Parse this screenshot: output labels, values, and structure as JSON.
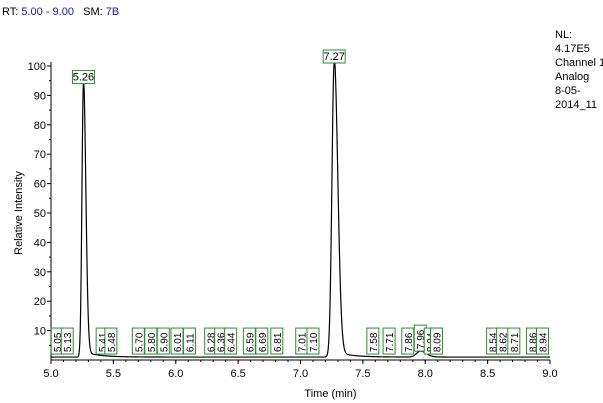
{
  "header": {
    "rt_label": "RT:",
    "rt_value": "5.00 - 9.00",
    "sm_label": "SM:",
    "sm_value": "7B"
  },
  "info": {
    "lines": [
      "NL:",
      "4.17E5",
      "Channel 1",
      "Analog",
      "8-05-",
      "2014_11"
    ]
  },
  "colors": {
    "trace": "#000000",
    "label_border": "#2e8b2e",
    "header_value": "#1a1aa6"
  },
  "chart_data": {
    "type": "line",
    "title": "",
    "xlabel": "Time (min)",
    "ylabel": "Relative Intensity",
    "xlim": [
      5.0,
      9.0
    ],
    "ylim": [
      0,
      100
    ],
    "xticks": [
      5.0,
      5.5,
      6.0,
      6.5,
      7.0,
      7.5,
      8.0,
      8.5,
      9.0
    ],
    "xtick_labels": [
      "5.0",
      "5.5",
      "6.0",
      "6.5",
      "7.0",
      "7.5",
      "8.0",
      "8.5",
      "9.0"
    ],
    "yticks": [
      10,
      20,
      30,
      40,
      50,
      60,
      70,
      80,
      90,
      100
    ],
    "ytick_labels": [
      "10",
      "20",
      "30",
      "40",
      "50",
      "60",
      "70",
      "80",
      "90",
      "100"
    ],
    "grid": false,
    "legend": "none",
    "baseline": 1,
    "peaks": [
      {
        "rt": 5.26,
        "height": 93,
        "width": 0.012
      },
      {
        "rt": 7.27,
        "height": 100,
        "width": 0.018
      },
      {
        "rt": 7.96,
        "height": 2,
        "width": 0.03
      }
    ],
    "annotations": [
      {
        "label": "5.05",
        "x": 5.05,
        "y": 1,
        "orient": "vertical"
      },
      {
        "label": "5.13",
        "x": 5.13,
        "y": 1,
        "orient": "vertical"
      },
      {
        "label": "5.26",
        "x": 5.26,
        "y": 93,
        "orient": "horizontal"
      },
      {
        "label": "5.41",
        "x": 5.41,
        "y": 1,
        "orient": "vertical"
      },
      {
        "label": "5.48",
        "x": 5.48,
        "y": 1,
        "orient": "vertical"
      },
      {
        "label": "5.70",
        "x": 5.7,
        "y": 1,
        "orient": "vertical"
      },
      {
        "label": "5.80",
        "x": 5.8,
        "y": 1,
        "orient": "vertical"
      },
      {
        "label": "5.90",
        "x": 5.9,
        "y": 1,
        "orient": "vertical"
      },
      {
        "label": "6.01",
        "x": 6.01,
        "y": 1,
        "orient": "vertical"
      },
      {
        "label": "6.11",
        "x": 6.11,
        "y": 1,
        "orient": "vertical"
      },
      {
        "label": "6.28",
        "x": 6.28,
        "y": 1,
        "orient": "vertical"
      },
      {
        "label": "6.36",
        "x": 6.36,
        "y": 1,
        "orient": "vertical"
      },
      {
        "label": "6.44",
        "x": 6.44,
        "y": 1,
        "orient": "vertical"
      },
      {
        "label": "6.59",
        "x": 6.59,
        "y": 1,
        "orient": "vertical"
      },
      {
        "label": "6.69",
        "x": 6.69,
        "y": 1,
        "orient": "vertical"
      },
      {
        "label": "6.81",
        "x": 6.81,
        "y": 1,
        "orient": "vertical"
      },
      {
        "label": "7.01",
        "x": 7.01,
        "y": 1,
        "orient": "vertical"
      },
      {
        "label": "7.10",
        "x": 7.1,
        "y": 1,
        "orient": "vertical"
      },
      {
        "label": "7.27",
        "x": 7.27,
        "y": 100,
        "orient": "horizontal"
      },
      {
        "label": "7.58",
        "x": 7.58,
        "y": 1,
        "orient": "vertical"
      },
      {
        "label": "7.71",
        "x": 7.71,
        "y": 1,
        "orient": "vertical"
      },
      {
        "label": "7.86",
        "x": 7.86,
        "y": 1,
        "orient": "vertical"
      },
      {
        "label": "7.96",
        "x": 7.96,
        "y": 2,
        "orient": "vertical"
      },
      {
        "label": "8.04",
        "x": 8.04,
        "y": 1,
        "orient": "vertical"
      },
      {
        "label": "8.09",
        "x": 8.09,
        "y": 1,
        "orient": "vertical"
      },
      {
        "label": "8.54",
        "x": 8.54,
        "y": 1,
        "orient": "vertical"
      },
      {
        "label": "8.62",
        "x": 8.62,
        "y": 1,
        "orient": "vertical"
      },
      {
        "label": "8.71",
        "x": 8.71,
        "y": 1,
        "orient": "vertical"
      },
      {
        "label": "8.86",
        "x": 8.86,
        "y": 1,
        "orient": "vertical"
      },
      {
        "label": "8.94",
        "x": 8.94,
        "y": 1,
        "orient": "vertical"
      }
    ]
  }
}
